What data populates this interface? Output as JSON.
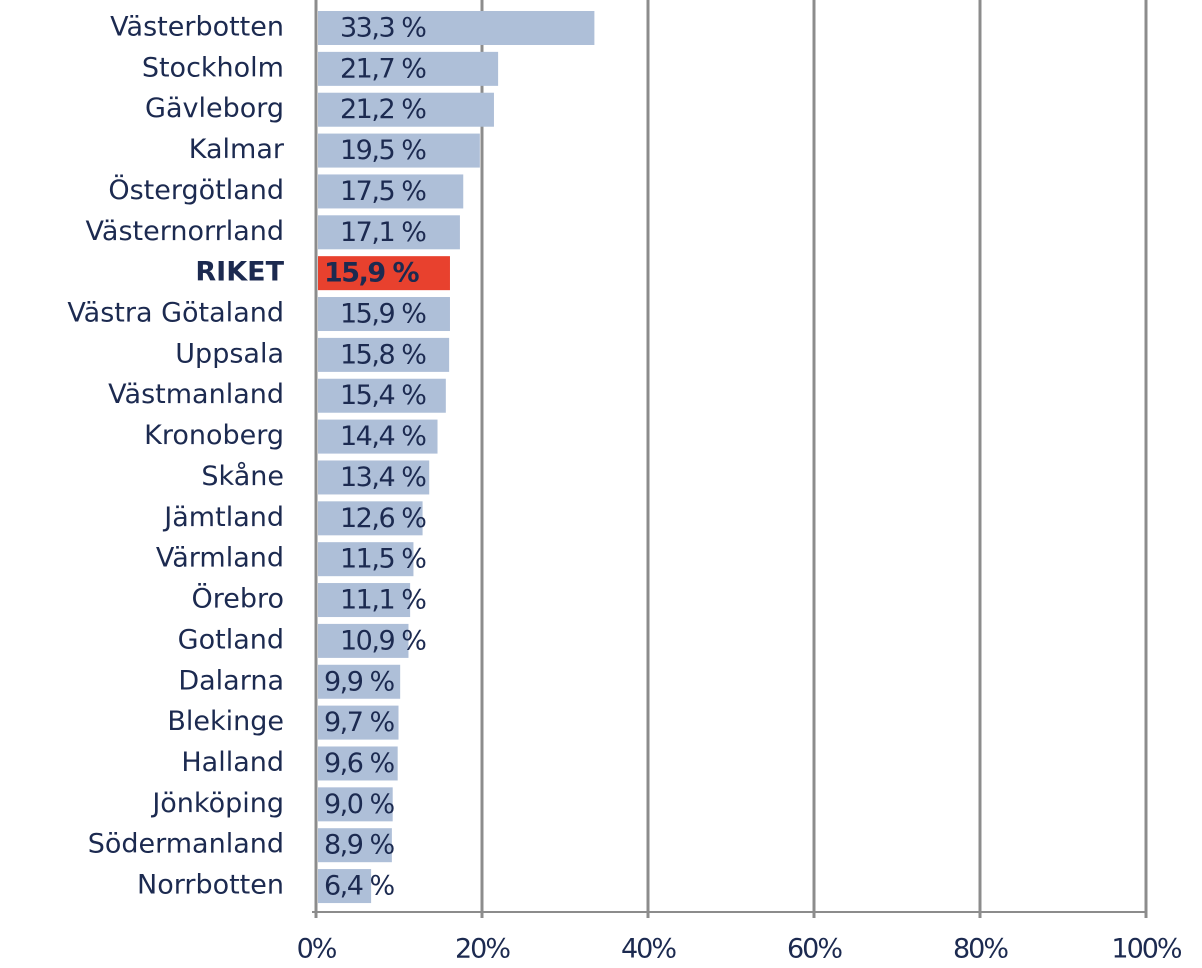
{
  "chart_data": {
    "type": "barh",
    "categories": [
      "Västerbotten",
      "Stockholm",
      "Gävleborg",
      "Kalmar",
      "Östergötland",
      "Västernorrland",
      "RIKET",
      "Västra Götaland",
      "Uppsala",
      "Västmanland",
      "Kronoberg",
      "Skåne",
      "Jämtland",
      "Värmland",
      "Örebro",
      "Gotland",
      "Dalarna",
      "Blekinge",
      "Halland",
      "Jönköping",
      "Södermanland",
      "Norrbotten"
    ],
    "values": [
      33.3,
      21.7,
      21.2,
      19.5,
      17.5,
      17.1,
      15.9,
      15.9,
      15.8,
      15.4,
      14.4,
      13.4,
      12.6,
      11.5,
      11.1,
      10.9,
      9.9,
      9.7,
      9.6,
      9.0,
      8.9,
      6.4
    ],
    "value_labels": [
      "33,3 %",
      "21,7 %",
      "21,2 %",
      "19,5 %",
      "17,5 %",
      "17,1 %",
      "15,9 %",
      "15,9 %",
      "15,8 %",
      "15,4 %",
      "14,4 %",
      "13,4 %",
      "12,6 %",
      "11,5 %",
      "11,1 %",
      "10,9 %",
      "9,9 %",
      "9,7 %",
      "9,6 %",
      "9,0 %",
      "8,9 %",
      "6,4 %"
    ],
    "color": "#aebfd8",
    "colors": [
      "#aebfd8",
      "#aebfd8",
      "#aebfd8",
      "#aebfd8",
      "#aebfd8",
      "#aebfd8",
      "#e8412e",
      "#aebfd8",
      "#aebfd8",
      "#aebfd8",
      "#aebfd8",
      "#aebfd8",
      "#aebfd8",
      "#aebfd8",
      "#aebfd8",
      "#aebfd8",
      "#aebfd8",
      "#aebfd8",
      "#aebfd8",
      "#aebfd8",
      "#aebfd8",
      "#aebfd8"
    ],
    "xlim": [
      0,
      100
    ],
    "xticks": [
      {
        "value": 0,
        "label": "0%"
      },
      {
        "value": 20,
        "label": "20%"
      },
      {
        "value": 40,
        "label": "40%"
      },
      {
        "value": 60,
        "label": "60%"
      },
      {
        "value": 80,
        "label": "80%"
      },
      {
        "value": 100,
        "label": "100%"
      }
    ],
    "grid": true
  }
}
